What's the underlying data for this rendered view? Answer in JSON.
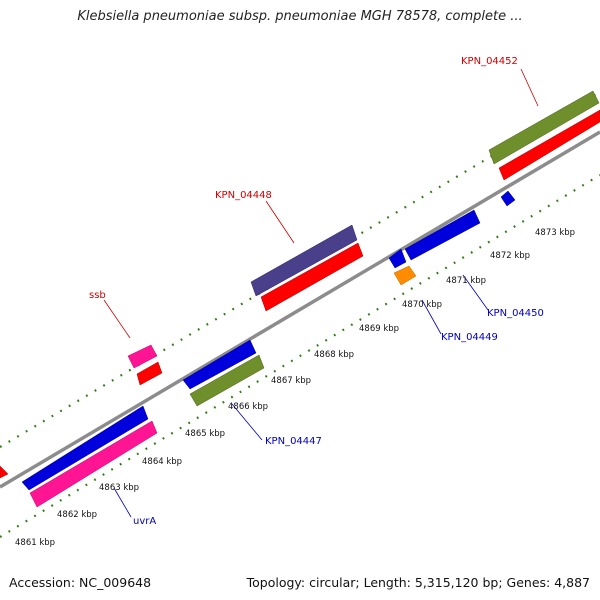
{
  "title": "Klebsiella pneumoniae subsp. pneumoniae MGH 78578, complete ...",
  "footer": {
    "accession": "Accession: NC_009648",
    "info": "Topology: circular; Length: 5,315,120 bp; Genes: 4,887"
  },
  "colors": {
    "backbone": "#8c8c8c",
    "tick_track": "#2e7d12",
    "red_label": "#cc0000",
    "blue_label": "#0000bb"
  },
  "tick_labels": [
    "4861 kbp",
    "4862 kbp",
    "4863 kbp",
    "4864 kbp",
    "4865 kbp",
    "4866 kbp",
    "4867 kbp",
    "4868 kbp",
    "4869 kbp",
    "4870 kbp",
    "4871 kbp",
    "4872 kbp",
    "4873 kbp"
  ],
  "gene_labels": {
    "kpn_04452": "KPN_04452",
    "kpn_04448": "KPN_04448",
    "ssb": "ssb",
    "kpn_04450": "KPN_04450",
    "kpn_04449": "KPN_04449",
    "kpn_04447": "KPN_04447",
    "uvra": "uvrA"
  }
}
